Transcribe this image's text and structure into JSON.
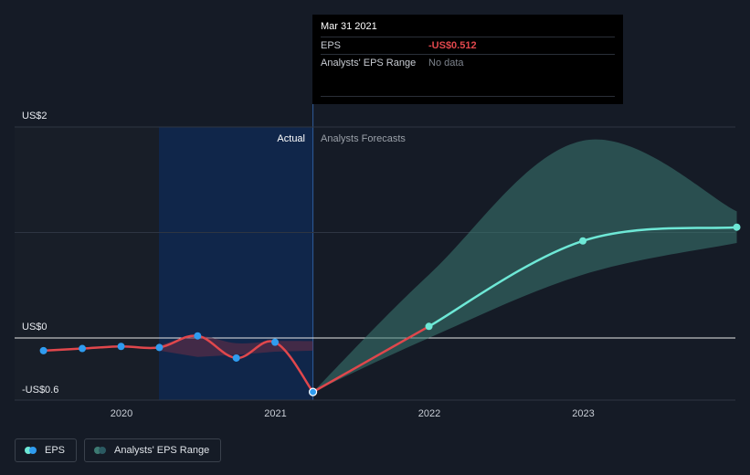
{
  "tooltip": {
    "date": "Mar 31 2021",
    "eps_label": "EPS",
    "eps_value": "-US$0.512",
    "range_label": "Analysts' EPS Range",
    "range_value": "No data"
  },
  "regions": {
    "actual_label": "Actual",
    "forecast_label": "Analysts Forecasts"
  },
  "legend": {
    "eps_label": "EPS",
    "range_label": "Analysts' EPS Range"
  },
  "colors": {
    "background": "#151b26",
    "eps_actual": "#e0474c",
    "eps_forecast": "#6ee8d6",
    "range_fill": "#3d7a72",
    "actual_highlight": "#10264a",
    "point_actual": "#2f9cf0",
    "zero_line": "#e8e8e8",
    "grid": "#2e3542"
  },
  "chart_data": {
    "type": "line",
    "x_axis": {
      "tick_labels": [
        "2020",
        "2021",
        "2022",
        "2023"
      ],
      "range": [
        "2019-04",
        "2023-12"
      ]
    },
    "y_axis": {
      "tick_labels": [
        "US$2",
        "US$0",
        "-US$0.6"
      ],
      "ylim": [
        -0.6,
        2.0
      ]
    },
    "present_date": "2021-03-31",
    "series": [
      {
        "name": "EPS",
        "kind": "actual",
        "points": [
          {
            "x": "2019-06-30",
            "y": -0.12
          },
          {
            "x": "2019-09-30",
            "y": -0.1
          },
          {
            "x": "2019-12-31",
            "y": -0.08
          },
          {
            "x": "2020-03-31",
            "y": -0.09
          },
          {
            "x": "2020-06-30",
            "y": 0.02
          },
          {
            "x": "2020-09-30",
            "y": -0.19
          },
          {
            "x": "2020-12-31",
            "y": -0.04
          },
          {
            "x": "2021-03-31",
            "y": -0.512
          }
        ]
      },
      {
        "name": "EPS",
        "kind": "forecast",
        "points": [
          {
            "x": "2021-03-31",
            "y": -0.512
          },
          {
            "x": "2021-12-31",
            "y": 0.11
          },
          {
            "x": "2022-12-31",
            "y": 0.92
          },
          {
            "x": "2023-12-31",
            "y": 1.05
          }
        ]
      },
      {
        "name": "Analysts' EPS Range",
        "kind": "range",
        "points": [
          {
            "x": "2021-03-31",
            "low": -0.512,
            "high": -0.512
          },
          {
            "x": "2021-12-31",
            "low": 0.0,
            "high": 0.6
          },
          {
            "x": "2022-12-31",
            "low": 0.6,
            "high": 1.87
          },
          {
            "x": "2023-12-31",
            "low": 0.9,
            "high": 1.2
          }
        ]
      },
      {
        "name": "Past range band",
        "kind": "past_range",
        "points": [
          {
            "x": "2020-03-31",
            "low": -0.12,
            "high": -0.07
          },
          {
            "x": "2020-06-30",
            "low": -0.18,
            "high": 0.02
          },
          {
            "x": "2020-09-30",
            "low": -0.16,
            "high": -0.05
          },
          {
            "x": "2020-12-31",
            "low": -0.13,
            "high": -0.03
          },
          {
            "x": "2021-03-31",
            "low": -0.12,
            "high": -0.03
          }
        ]
      }
    ]
  }
}
